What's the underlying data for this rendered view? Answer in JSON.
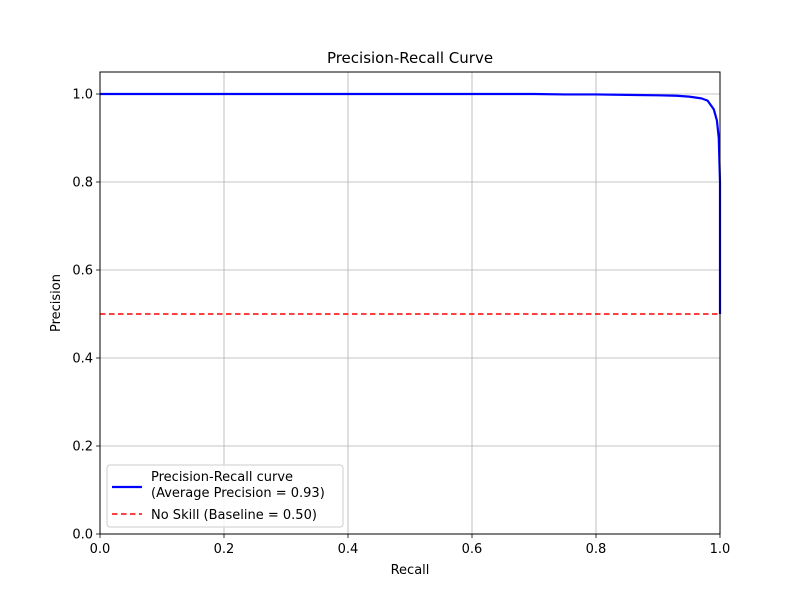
{
  "chart_data": {
    "type": "line",
    "title": "Precision-Recall Curve",
    "xlabel": "Recall",
    "ylabel": "Precision",
    "xlim": [
      0.0,
      1.0
    ],
    "ylim": [
      0.0,
      1.05
    ],
    "grid": true,
    "legend_position": "lower-left",
    "x_ticks": [
      0.0,
      0.2,
      0.4,
      0.6,
      0.8,
      1.0
    ],
    "x_tick_labels": [
      "0.0",
      "0.2",
      "0.4",
      "0.6",
      "0.8",
      "1.0"
    ],
    "y_ticks": [
      0.0,
      0.2,
      0.4,
      0.6,
      0.8,
      1.0
    ],
    "y_tick_labels": [
      "0.0",
      "0.2",
      "0.4",
      "0.6",
      "0.8",
      "1.0"
    ],
    "series": [
      {
        "name": "Precision-Recall curve",
        "name_line2": "(Average Precision = 0.93)",
        "color": "#0000ff",
        "style": "solid",
        "x": [
          0.0,
          0.1,
          0.2,
          0.3,
          0.4,
          0.5,
          0.6,
          0.7,
          0.75,
          0.8,
          0.85,
          0.9,
          0.93,
          0.95,
          0.97,
          0.98,
          0.985,
          0.99,
          0.995,
          0.998,
          1.0,
          1.0
        ],
        "y": [
          1.0,
          1.0,
          1.0,
          1.0,
          1.0,
          1.0,
          1.0,
          1.0,
          0.999,
          0.999,
          0.998,
          0.997,
          0.996,
          0.994,
          0.99,
          0.985,
          0.975,
          0.965,
          0.94,
          0.9,
          0.8,
          0.5
        ]
      },
      {
        "name": "No Skill (Baseline = 0.50)",
        "color": "#ff0000",
        "style": "dashed",
        "x": [
          0.0,
          1.0
        ],
        "y": [
          0.5,
          0.5
        ]
      }
    ]
  }
}
